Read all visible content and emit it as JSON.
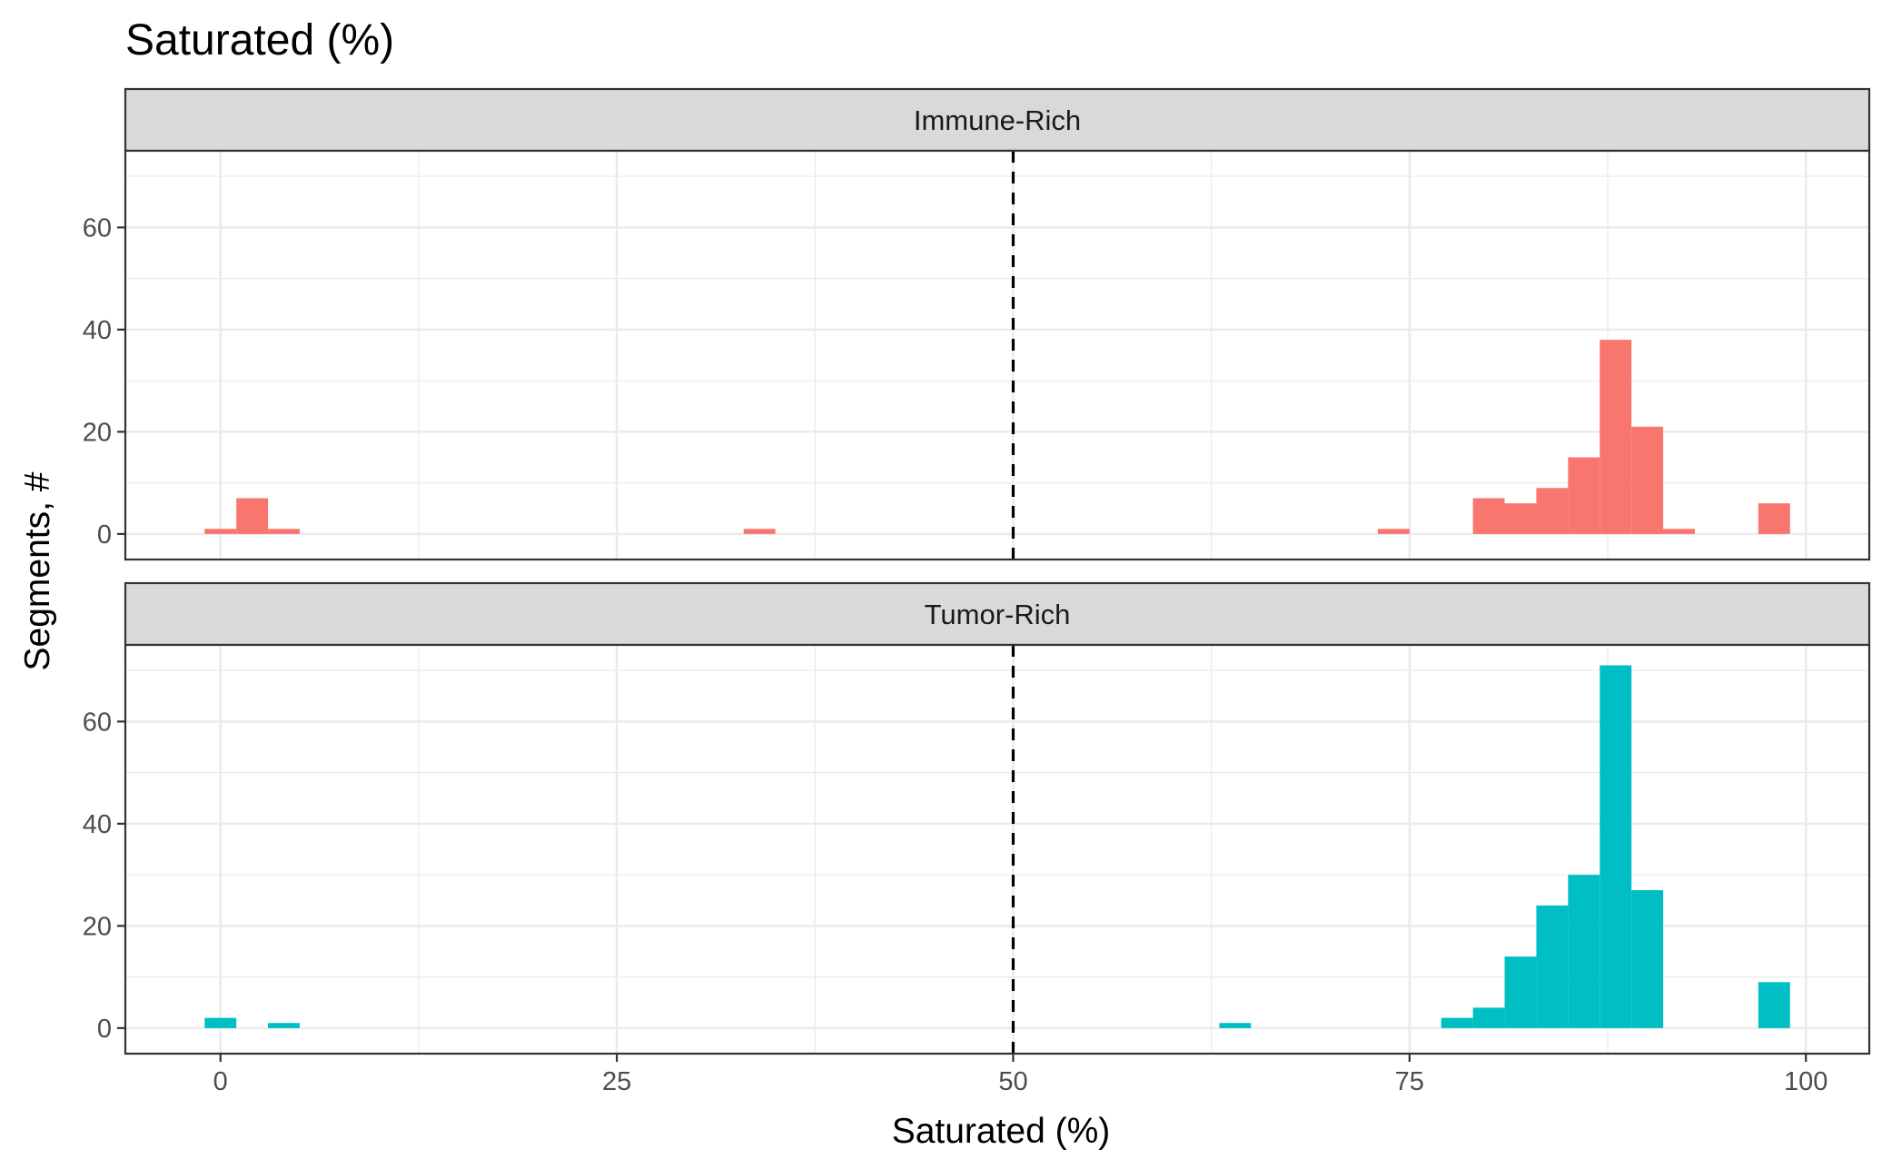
{
  "chart_data": {
    "type": "bar",
    "title": "Saturated (%)",
    "xlabel": "Saturated (%)",
    "ylabel": "Segments, #",
    "xlim": [
      -6,
      104
    ],
    "ylim": [
      -5,
      75
    ],
    "x_ticks": [
      0,
      25,
      50,
      75,
      100
    ],
    "y_ticks": [
      0,
      20,
      40,
      60
    ],
    "bin_width": 2,
    "reference_line": {
      "x": 50,
      "style": "dashed",
      "color": "#000000"
    },
    "grid": true,
    "facets": [
      {
        "label": "Immune-Rich",
        "color": "#F8766D",
        "x": [
          0,
          2,
          4,
          34,
          74,
          80,
          82,
          84,
          86,
          88,
          90,
          92,
          98
        ],
        "values": [
          1,
          7,
          1,
          1,
          1,
          7,
          6,
          9,
          15,
          38,
          21,
          1,
          6
        ]
      },
      {
        "label": "Tumor-Rich",
        "color": "#00BFC4",
        "x": [
          0,
          4,
          64,
          78,
          80,
          82,
          84,
          86,
          88,
          90,
          98
        ],
        "values": [
          2,
          1,
          1,
          2,
          4,
          14,
          24,
          30,
          71,
          27,
          9
        ]
      }
    ]
  }
}
